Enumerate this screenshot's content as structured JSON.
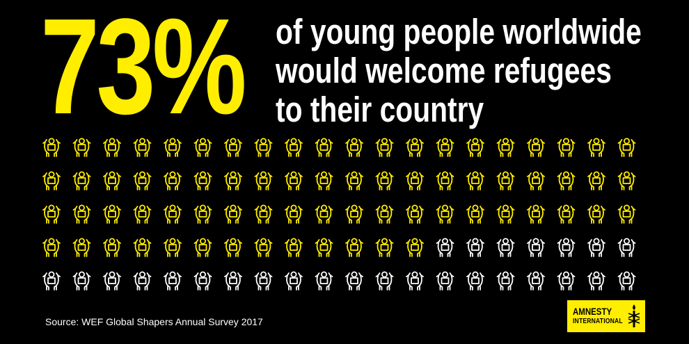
{
  "colors": {
    "background": "#000000",
    "accent": "#FFEE00",
    "neutral": "#FFFFFF"
  },
  "headline": {
    "stat": "73%",
    "lines": [
      "of young people worldwide",
      "would welcome refugees",
      "to their country"
    ]
  },
  "chart_data": {
    "type": "pictogram",
    "icon": "hands-holding-person-icon",
    "total": 100,
    "highlighted": 73,
    "columns": 20,
    "rows": 5,
    "highlight_color": "#FFEE00",
    "rest_color": "#FFFFFF"
  },
  "source": "Source: WEF Global Shapers Annual Survey 2017",
  "logo": {
    "line1": "AMNESTY",
    "line2": "INTERNATIONAL",
    "icon": "candle-barbed-wire-icon"
  }
}
